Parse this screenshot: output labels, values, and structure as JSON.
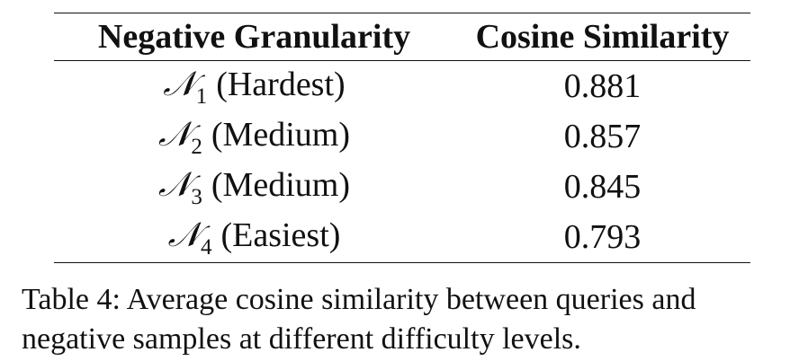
{
  "table": {
    "headers": [
      "Negative Granularity",
      "Cosine Similarity"
    ],
    "rows": [
      {
        "symbol": "𝒩",
        "subscript": "1",
        "label": "(Hardest)",
        "value": "0.881"
      },
      {
        "symbol": "𝒩",
        "subscript": "2",
        "label": "(Medium)",
        "value": "0.857"
      },
      {
        "symbol": "𝒩",
        "subscript": "3",
        "label": "(Medium)",
        "value": "0.845"
      },
      {
        "symbol": "𝒩",
        "subscript": "4",
        "label": "(Easiest)",
        "value": "0.793"
      }
    ]
  },
  "caption": {
    "line1": "Table 4: Average cosine similarity between queries and",
    "line2": "negative samples at different difficulty levels."
  }
}
